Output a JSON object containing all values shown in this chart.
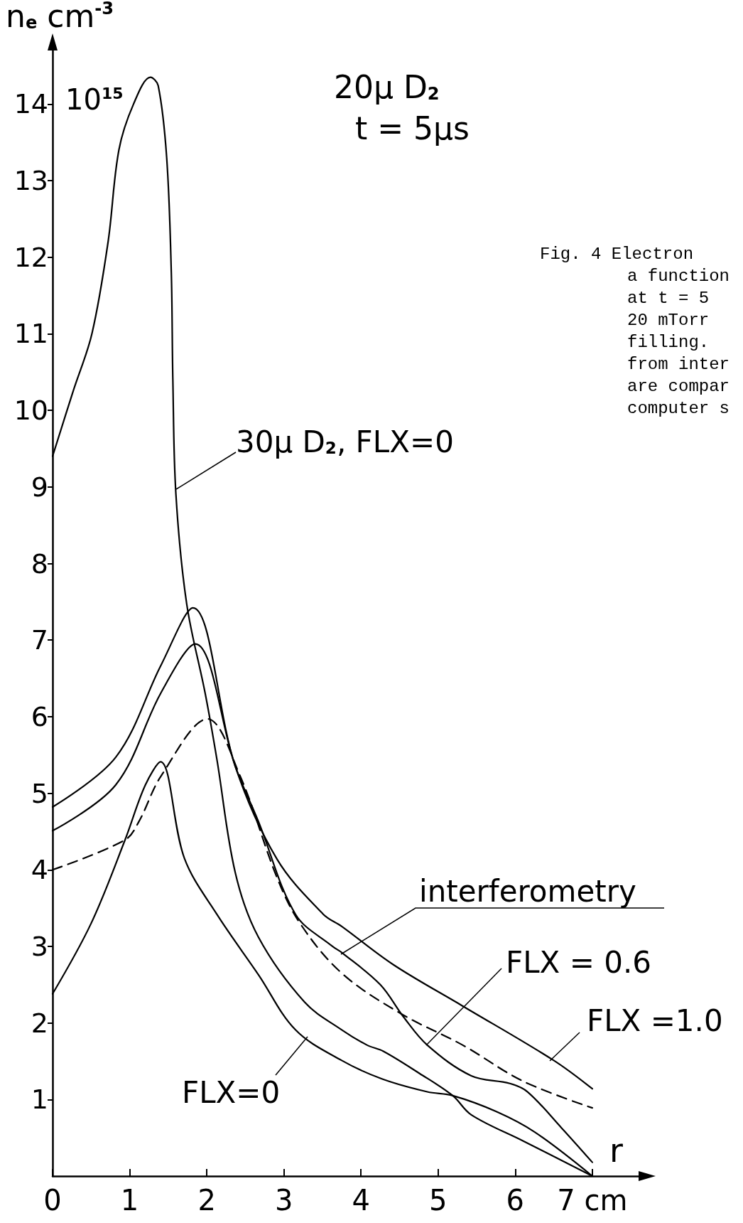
{
  "chart_data": {
    "type": "line",
    "title": "20μ D$_{2}$",
    "subtitle": "t = 5μs",
    "xlabel": "r",
    "ylabel": "n$_{e}$ cm$^{-3}$",
    "annotations": [
      "10$^{15}$",
      "Fig. 4 Electron",
      "a function",
      "at t = 5",
      "20 mTorr",
      "filling.",
      "from inter",
      "are compar",
      "computer s"
    ],
    "xlim": [
      0,
      7.6
    ],
    "ylim": [
      0,
      14.7
    ],
    "xticks": [
      0,
      1,
      2,
      3,
      4,
      5,
      6,
      {
        "value": 7,
        "label": "7 cm"
      }
    ],
    "yticks": [
      1,
      2,
      3,
      4,
      5,
      6,
      7,
      8,
      9,
      10,
      11,
      12,
      13,
      14
    ],
    "grid": false,
    "marker": "none",
    "line_style": "solid",
    "series": [
      {
        "name": "30μ D$_{2}$, FLX=0",
        "color": "#000000",
        "x": [
          0,
          0.27,
          0.51,
          0.72,
          0.86,
          1.05,
          1.27,
          1.37,
          1.48,
          1.54,
          1.56,
          1.6,
          1.74,
          1.98,
          2.13,
          2.37,
          2.67,
          3.27,
          3.75,
          4.08,
          4.29,
          4.76,
          5.19,
          5.43,
          6.1,
          7.0
        ],
        "values": [
          9.4,
          10.26,
          11.0,
          12.2,
          13.4,
          14.0,
          14.35,
          14.24,
          13.3,
          11.8,
          10.4,
          8.9,
          7.47,
          6.3,
          5.45,
          3.96,
          3.12,
          2.27,
          1.91,
          1.71,
          1.63,
          1.34,
          1.05,
          0.8,
          0.46,
          0
        ]
      },
      {
        "name": "FLX=0",
        "color": "#000000",
        "x": [
          0,
          0.5,
          0.94,
          1.2,
          1.4,
          1.71,
          2.13,
          2.67,
          3.15,
          3.75,
          4.27,
          4.86,
          5.19,
          5.76,
          6.26,
          7.0
        ],
        "values": [
          2.38,
          3.3,
          4.39,
          5.1,
          5.41,
          4.15,
          3.42,
          2.63,
          1.91,
          1.51,
          1.27,
          1.1,
          1.05,
          0.84,
          0.57,
          0
        ]
      },
      {
        "name": "FLX = 0.6",
        "color": "#000000",
        "x": [
          0,
          0.82,
          1.41,
          1.85,
          2.37,
          2.67,
          3.15,
          3.63,
          3.75,
          4.25,
          4.55,
          4.86,
          5.43,
          5.93,
          6.16,
          6.6,
          7.0
        ],
        "values": [
          4.51,
          5.11,
          6.32,
          6.95,
          5.35,
          4.63,
          3.42,
          3.0,
          2.92,
          2.5,
          2.08,
          1.71,
          1.31,
          1.21,
          1.1,
          0.63,
          0.18
        ]
      },
      {
        "name": "FLX =1.0",
        "color": "#000000",
        "x": [
          0,
          0.82,
          1.41,
          1.82,
          2.37,
          2.91,
          3.51,
          3.75,
          4.42,
          5.32,
          6.5,
          7.0
        ],
        "values": [
          4.82,
          5.47,
          6.68,
          7.42,
          5.35,
          4.14,
          3.42,
          3.26,
          2.76,
          2.22,
          1.51,
          1.14
        ]
      },
      {
        "name": "interferometry",
        "color": "#000000",
        "line_style": "dashed",
        "x": [
          0,
          0.94,
          1.12,
          1.41,
          2.01,
          2.43,
          2.91,
          3.21,
          3.75,
          4.52,
          5.32,
          6.1,
          7.0
        ],
        "values": [
          4.0,
          4.39,
          4.63,
          5.23,
          5.97,
          5.23,
          3.9,
          3.3,
          2.65,
          2.12,
          1.71,
          1.24,
          0.89
        ]
      }
    ]
  }
}
